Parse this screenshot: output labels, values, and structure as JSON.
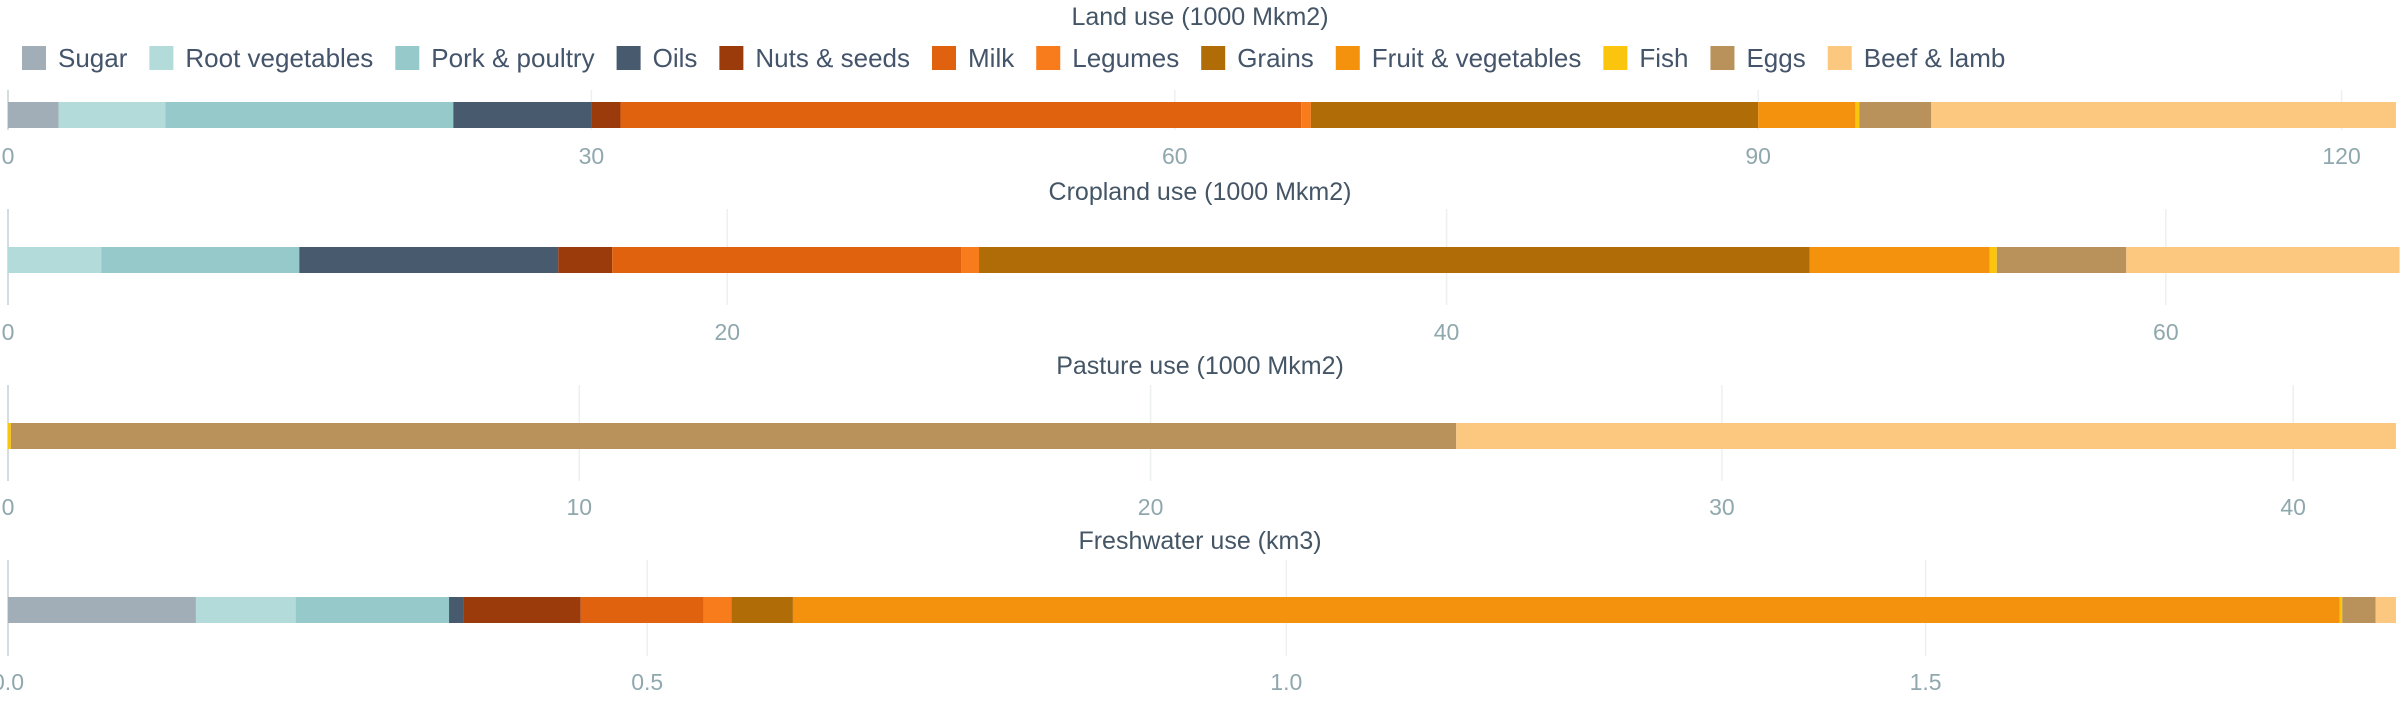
{
  "chart_data": {
    "type": "bar",
    "orientation": "horizontal",
    "stacked": true,
    "legend_position": "top",
    "grid": true,
    "categories": [
      "Sugar",
      "Root vegetables",
      "Pork & poultry",
      "Oils",
      "Nuts & seeds",
      "Milk",
      "Legumes",
      "Grains",
      "Fruit & vegetables",
      "Fish",
      "Eggs",
      "Beef & lamb"
    ],
    "colors": [
      "#a1adb7",
      "#b3dbd9",
      "#96c9c9",
      "#475a6e",
      "#9b3b0c",
      "#e0610e",
      "#f87c1b",
      "#b06c06",
      "#f4920d",
      "#fcc50d",
      "#b8925a",
      "#fcc77f"
    ],
    "panels": [
      {
        "title": "Land use (1000 Mkm2)",
        "xlim": [
          0,
          122.8
        ],
        "ticks": [
          0,
          30,
          60,
          90,
          120
        ],
        "tick_labels": [
          "0",
          "30",
          "60",
          "90",
          "120"
        ],
        "values": [
          2.6,
          5.5,
          14.8,
          7.1,
          1.5,
          35.0,
          0.5,
          23.0,
          5.0,
          0.2,
          3.7,
          23.9
        ]
      },
      {
        "title": "Cropland use (1000 Mkm2)",
        "xlim": [
          0,
          66.4
        ],
        "ticks": [
          0,
          20,
          40,
          60
        ],
        "tick_labels": [
          "0",
          "20",
          "40",
          "60"
        ],
        "values": [
          0.0,
          2.6,
          5.5,
          7.2,
          1.5,
          9.7,
          0.5,
          23.1,
          5.0,
          0.2,
          3.6,
          7.6
        ]
      },
      {
        "title": "Pasture use (1000 Mkm2)",
        "xlim": [
          0,
          41.8
        ],
        "ticks": [
          0,
          10,
          20,
          30,
          40
        ],
        "tick_labels": [
          "0",
          "10",
          "20",
          "30",
          "40"
        ],
        "values": [
          0,
          0,
          0,
          0,
          0,
          0,
          0,
          0,
          0,
          0.05,
          25.3,
          16.45
        ]
      },
      {
        "title": "Freshwater use (km3)",
        "xlim": [
          0,
          1.868
        ],
        "ticks": [
          0,
          0.5,
          1.0,
          1.5
        ],
        "tick_labels": [
          "0.0",
          "0.5",
          "1.0",
          "1.5"
        ],
        "values": [
          0.147,
          0.078,
          0.12,
          0.011,
          0.092,
          0.096,
          0.022,
          0.048,
          1.21,
          0.002,
          0.026,
          0.016
        ]
      }
    ]
  }
}
